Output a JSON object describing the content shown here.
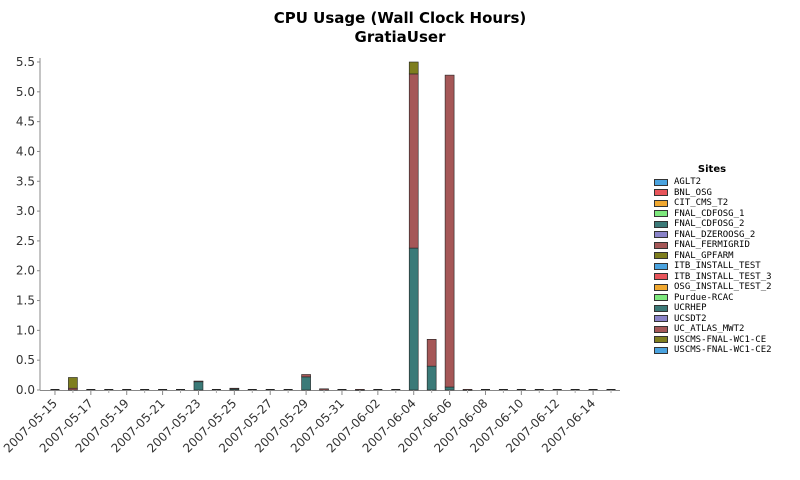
{
  "chart_data": {
    "type": "bar",
    "stacked": true,
    "title": "CPU Usage (Wall Clock Hours)",
    "subtitle": "GratiaUser",
    "xlabel": "",
    "ylabel": "",
    "ylim": [
      0,
      5.5
    ],
    "yticks": [
      "0.0",
      "0.5",
      "1.0",
      "1.5",
      "2.0",
      "2.5",
      "3.0",
      "3.5",
      "4.0",
      "4.5",
      "5.0",
      "5.5"
    ],
    "grid": false,
    "legend_title": "Sites",
    "legend_position": "right",
    "categories": [
      "2007-05-15",
      "2007-05-16",
      "2007-05-17",
      "2007-05-18",
      "2007-05-19",
      "2007-05-20",
      "2007-05-21",
      "2007-05-22",
      "2007-05-23",
      "2007-05-24",
      "2007-05-25",
      "2007-05-26",
      "2007-05-27",
      "2007-05-28",
      "2007-05-29",
      "2007-05-30",
      "2007-05-31",
      "2007-06-01",
      "2007-06-02",
      "2007-06-03",
      "2007-06-04",
      "2007-06-05",
      "2007-06-06",
      "2007-06-07",
      "2007-06-08",
      "2007-06-09",
      "2007-06-10",
      "2007-06-11",
      "2007-06-12",
      "2007-06-13",
      "2007-06-14",
      "2007-06-15"
    ],
    "tick_labels": [
      "2007-05-15",
      "2007-05-17",
      "2007-05-19",
      "2007-05-21",
      "2007-05-23",
      "2007-05-25",
      "2007-05-27",
      "2007-05-29",
      "2007-05-31",
      "2007-06-02",
      "2007-06-04",
      "2007-06-06",
      "2007-06-08",
      "2007-06-10",
      "2007-06-12",
      "2007-06-14"
    ],
    "series": [
      {
        "name": "AGLT2",
        "color": "#4aa3df",
        "values": [
          0,
          0,
          0,
          0,
          0,
          0,
          0,
          0,
          0,
          0,
          0,
          0,
          0,
          0,
          0,
          0,
          0,
          0,
          0,
          0,
          0,
          0,
          0,
          0,
          0,
          0,
          0,
          0,
          0,
          0,
          0,
          0
        ]
      },
      {
        "name": "BNL_OSG",
        "color": "#e8555b",
        "values": [
          0,
          0,
          0,
          0,
          0,
          0,
          0,
          0,
          0,
          0,
          0,
          0,
          0,
          0,
          0,
          0,
          0,
          0,
          0,
          0,
          0,
          0,
          0,
          0,
          0,
          0,
          0,
          0,
          0,
          0,
          0,
          0
        ]
      },
      {
        "name": "CIT_CMS_T2",
        "color": "#f0a830",
        "values": [
          0,
          0,
          0,
          0,
          0,
          0,
          0,
          0,
          0,
          0,
          0,
          0,
          0,
          0,
          0,
          0,
          0,
          0,
          0,
          0,
          0,
          0,
          0,
          0,
          0,
          0,
          0,
          0,
          0,
          0,
          0,
          0
        ]
      },
      {
        "name": "FNAL_CDFOSG_1",
        "color": "#7de87d",
        "values": [
          0,
          0,
          0,
          0,
          0,
          0,
          0,
          0,
          0,
          0,
          0,
          0,
          0,
          0,
          0,
          0,
          0,
          0,
          0,
          0,
          0,
          0,
          0,
          0,
          0,
          0,
          0,
          0,
          0,
          0,
          0,
          0
        ]
      },
      {
        "name": "FNAL_CDFOSG_2",
        "color": "#3b7a78",
        "values": [
          0,
          0,
          0,
          0,
          0,
          0,
          0,
          0,
          0.14,
          0,
          0.02,
          0,
          0,
          0,
          0.22,
          0,
          0,
          0,
          0,
          0,
          2.38,
          0.4,
          0.05,
          0,
          0,
          0,
          0,
          0,
          0,
          0,
          0,
          0
        ]
      },
      {
        "name": "FNAL_DZEROOSG_2",
        "color": "#8a83c9",
        "values": [
          0,
          0,
          0,
          0,
          0,
          0,
          0,
          0,
          0,
          0,
          0,
          0,
          0,
          0,
          0,
          0,
          0,
          0,
          0,
          0,
          0,
          0,
          0,
          0,
          0,
          0,
          0,
          0,
          0,
          0,
          0,
          0
        ]
      },
      {
        "name": "FNAL_FERMIGRID",
        "color": "#a55757",
        "values": [
          0,
          0.03,
          0,
          0,
          0,
          0,
          0,
          0,
          0.01,
          0,
          0.01,
          0,
          0,
          0,
          0.04,
          0.02,
          0,
          0.01,
          0,
          0,
          2.92,
          0.45,
          5.23,
          0.01,
          0,
          0,
          0,
          0,
          0,
          0,
          0,
          0
        ]
      },
      {
        "name": "FNAL_GPFARM",
        "color": "#7e7e1e",
        "values": [
          0,
          0.18,
          0,
          0,
          0,
          0,
          0,
          0,
          0,
          0,
          0,
          0,
          0,
          0,
          0,
          0,
          0,
          0,
          0,
          0,
          0.2,
          0,
          0,
          0,
          0,
          0,
          0,
          0,
          0,
          0,
          0,
          0
        ]
      },
      {
        "name": "ITB_INSTALL_TEST",
        "color": "#4aa3df",
        "values": [
          0,
          0,
          0,
          0,
          0,
          0,
          0,
          0,
          0,
          0,
          0,
          0,
          0,
          0,
          0,
          0,
          0,
          0,
          0,
          0,
          0,
          0,
          0,
          0,
          0,
          0,
          0,
          0,
          0,
          0,
          0,
          0
        ]
      },
      {
        "name": "ITB_INSTALL_TEST_3",
        "color": "#e8555b",
        "values": [
          0,
          0,
          0,
          0,
          0,
          0,
          0,
          0,
          0,
          0,
          0,
          0,
          0,
          0,
          0,
          0,
          0,
          0,
          0,
          0,
          0,
          0,
          0,
          0,
          0,
          0,
          0,
          0,
          0,
          0,
          0,
          0
        ]
      },
      {
        "name": "OSG_INSTALL_TEST_2",
        "color": "#f0a830",
        "values": [
          0,
          0,
          0,
          0,
          0,
          0,
          0,
          0,
          0,
          0,
          0,
          0,
          0,
          0,
          0,
          0,
          0,
          0,
          0,
          0,
          0,
          0,
          0,
          0,
          0,
          0,
          0,
          0,
          0,
          0,
          0,
          0
        ]
      },
      {
        "name": "Purdue-RCAC",
        "color": "#7de87d",
        "values": [
          0,
          0,
          0,
          0,
          0,
          0,
          0,
          0,
          0,
          0,
          0,
          0,
          0,
          0,
          0,
          0,
          0,
          0,
          0,
          0,
          0,
          0,
          0,
          0,
          0,
          0,
          0,
          0,
          0,
          0,
          0,
          0
        ]
      },
      {
        "name": "UCRHEP",
        "color": "#3b7a78",
        "values": [
          0,
          0,
          0,
          0,
          0,
          0,
          0,
          0,
          0,
          0,
          0,
          0,
          0,
          0,
          0,
          0,
          0,
          0,
          0,
          0,
          0,
          0,
          0,
          0,
          0,
          0,
          0,
          0,
          0,
          0,
          0,
          0
        ]
      },
      {
        "name": "UCSDT2",
        "color": "#8a83c9",
        "values": [
          0,
          0,
          0,
          0,
          0,
          0,
          0,
          0,
          0,
          0,
          0,
          0,
          0,
          0,
          0,
          0,
          0,
          0,
          0,
          0,
          0,
          0,
          0,
          0,
          0,
          0,
          0,
          0,
          0,
          0,
          0,
          0
        ]
      },
      {
        "name": "UC_ATLAS_MWT2",
        "color": "#a55757",
        "values": [
          0,
          0,
          0,
          0,
          0,
          0,
          0,
          0,
          0,
          0,
          0,
          0,
          0,
          0,
          0,
          0,
          0,
          0,
          0,
          0,
          0,
          0,
          0,
          0,
          0,
          0,
          0,
          0,
          0,
          0,
          0,
          0
        ]
      },
      {
        "name": "USCMS-FNAL-WC1-CE",
        "color": "#7e7e1e",
        "values": [
          0,
          0,
          0,
          0,
          0,
          0,
          0,
          0,
          0,
          0,
          0,
          0,
          0,
          0,
          0,
          0,
          0,
          0,
          0,
          0,
          0,
          0,
          0,
          0,
          0,
          0,
          0,
          0,
          0,
          0,
          0,
          0
        ]
      },
      {
        "name": "USCMS-FNAL-WC1-CE2",
        "color": "#4aa3df",
        "values": [
          0,
          0,
          0,
          0,
          0,
          0,
          0,
          0,
          0,
          0,
          0,
          0,
          0,
          0,
          0,
          0,
          0,
          0,
          0,
          0,
          0,
          0,
          0,
          0,
          0,
          0,
          0,
          0,
          0,
          0,
          0,
          0
        ]
      }
    ]
  }
}
